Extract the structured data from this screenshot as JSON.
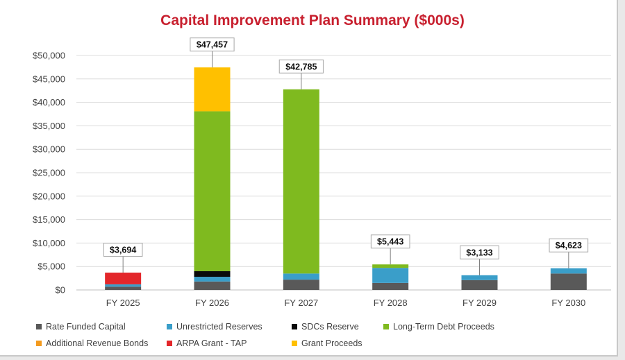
{
  "chart_data": {
    "type": "bar",
    "stacked": true,
    "title": "Capital Improvement Plan Summary ($000s)",
    "categories": [
      "FY 2025",
      "FY 2026",
      "FY 2027",
      "FY 2028",
      "FY 2029",
      "FY 2030"
    ],
    "y_ticks": [
      "$0",
      "$5,000",
      "$10,000",
      "$15,000",
      "$20,000",
      "$25,000",
      "$30,000",
      "$35,000",
      "$40,000",
      "$45,000",
      "$50,000"
    ],
    "ylim": [
      0,
      50000
    ],
    "grid": true,
    "legend_position": "bottom",
    "series": [
      {
        "name": "Rate Funded Capital",
        "color": "#595959",
        "values": [
          700,
          1800,
          2200,
          1500,
          2100,
          3500
        ]
      },
      {
        "name": "Unrestricted Reserves",
        "color": "#3a9ec9",
        "values": [
          500,
          1000,
          1300,
          3200,
          1033,
          1123
        ]
      },
      {
        "name": "SDCs Reserve",
        "color": "#0a0a0a",
        "values": [
          0,
          1200,
          0,
          0,
          0,
          0
        ]
      },
      {
        "name": "Long-Term Debt Proceeds",
        "color": "#7fba1f",
        "values": [
          0,
          34100,
          39285,
          743,
          0,
          0
        ]
      },
      {
        "name": "Additional Revenue Bonds",
        "color": "#f39a1e",
        "values": [
          0,
          0,
          0,
          0,
          0,
          0
        ]
      },
      {
        "name": "ARPA Grant - TAP",
        "color": "#e3262a",
        "values": [
          2494,
          0,
          0,
          0,
          0,
          0
        ]
      },
      {
        "name": "Grant Proceeds",
        "color": "#ffc000",
        "values": [
          0,
          9357,
          0,
          0,
          0,
          0
        ]
      }
    ],
    "totals": [
      3694,
      47457,
      42785,
      5443,
      3133,
      4623
    ],
    "total_labels": [
      "$3,694",
      "$47,457",
      "$42,785",
      "$5,443",
      "$3,133",
      "$4,623"
    ]
  }
}
